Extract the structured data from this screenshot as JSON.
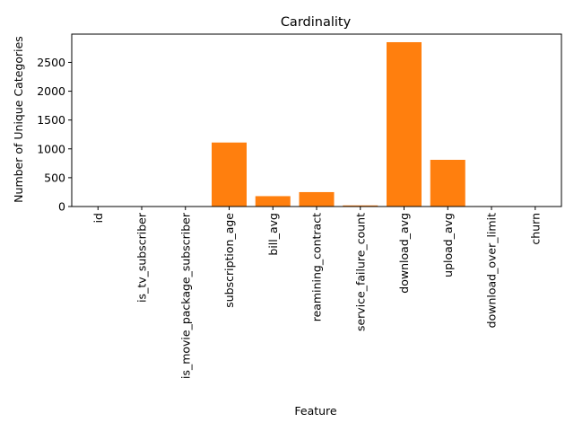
{
  "chart_data": {
    "type": "bar",
    "title": "Cardinality",
    "xlabel": "Feature",
    "ylabel": "Number of Unique Categories",
    "categories": [
      "id",
      "is_tv_subscriber",
      "is_movie_package_subscriber",
      "subscription_age",
      "bill_avg",
      "reamining_contract",
      "service_failure_count",
      "download_avg",
      "upload_avg",
      "download_over_limit",
      "churn"
    ],
    "values": [
      0,
      2,
      2,
      1110,
      180,
      250,
      19,
      2850,
      810,
      8,
      2
    ],
    "ylim": [
      0,
      2990
    ],
    "yticks": [
      0,
      500,
      1000,
      1500,
      2000,
      2500
    ],
    "bar_color": "#ff7f0e",
    "grid": false,
    "legend": "none"
  }
}
